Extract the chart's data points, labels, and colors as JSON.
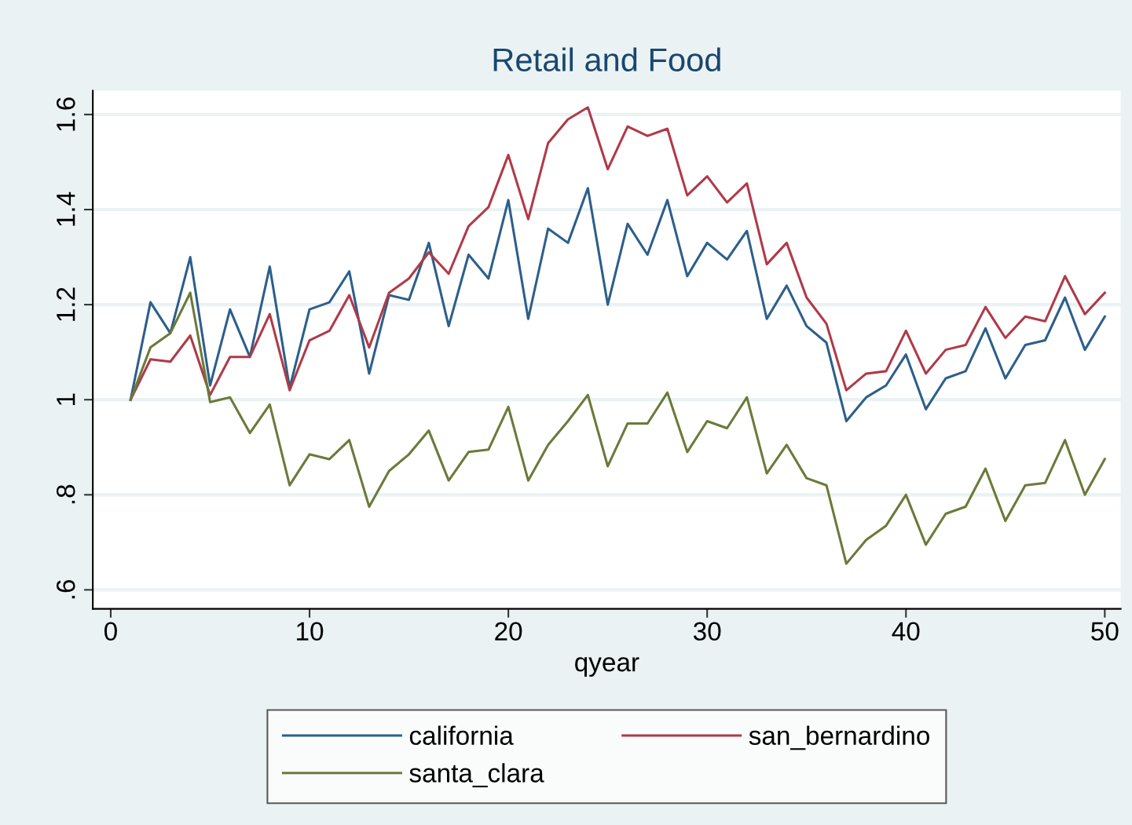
{
  "chart_data": {
    "type": "line",
    "title": "Retail and Food",
    "xlabel": "qyear",
    "x": [
      1,
      2,
      3,
      4,
      5,
      6,
      7,
      8,
      9,
      10,
      11,
      12,
      13,
      14,
      15,
      16,
      17,
      18,
      19,
      20,
      21,
      22,
      23,
      24,
      25,
      26,
      27,
      28,
      29,
      30,
      31,
      32,
      33,
      34,
      35,
      36,
      37,
      38,
      39,
      40,
      41,
      42,
      43,
      44,
      45,
      46,
      47,
      48,
      49,
      50
    ],
    "series": [
      {
        "name": "california",
        "color": "#2d5f8a",
        "values": [
          1.0,
          1.205,
          1.14,
          1.3,
          1.03,
          1.19,
          1.09,
          1.28,
          1.025,
          1.19,
          1.205,
          1.27,
          1.055,
          1.22,
          1.21,
          1.33,
          1.155,
          1.305,
          1.255,
          1.42,
          1.17,
          1.36,
          1.33,
          1.445,
          1.2,
          1.37,
          1.305,
          1.42,
          1.26,
          1.33,
          1.295,
          1.355,
          1.17,
          1.24,
          1.155,
          1.12,
          0.955,
          1.005,
          1.03,
          1.095,
          0.98,
          1.045,
          1.06,
          1.15,
          1.045,
          1.115,
          1.125,
          1.215,
          1.105,
          1.175
        ]
      },
      {
        "name": "san_bernardino",
        "color": "#b03a48",
        "values": [
          1.0,
          1.085,
          1.08,
          1.135,
          1.01,
          1.09,
          1.09,
          1.18,
          1.02,
          1.125,
          1.145,
          1.22,
          1.11,
          1.225,
          1.255,
          1.31,
          1.265,
          1.365,
          1.405,
          1.515,
          1.38,
          1.54,
          1.59,
          1.615,
          1.485,
          1.575,
          1.555,
          1.57,
          1.43,
          1.47,
          1.415,
          1.455,
          1.285,
          1.33,
          1.215,
          1.16,
          1.02,
          1.055,
          1.06,
          1.145,
          1.055,
          1.105,
          1.115,
          1.195,
          1.13,
          1.175,
          1.165,
          1.26,
          1.18,
          1.225
        ]
      },
      {
        "name": "santa_clara",
        "color": "#6b7a3a",
        "values": [
          1.0,
          1.11,
          1.14,
          1.225,
          0.995,
          1.005,
          0.93,
          0.99,
          0.82,
          0.885,
          0.875,
          0.915,
          0.775,
          0.85,
          0.885,
          0.935,
          0.83,
          0.89,
          0.895,
          0.985,
          0.83,
          0.905,
          0.955,
          1.01,
          0.86,
          0.95,
          0.95,
          1.015,
          0.89,
          0.955,
          0.94,
          1.005,
          0.845,
          0.905,
          0.835,
          0.82,
          0.655,
          0.705,
          0.735,
          0.8,
          0.695,
          0.76,
          0.775,
          0.855,
          0.745,
          0.82,
          0.825,
          0.915,
          0.8,
          0.875
        ]
      }
    ],
    "xlim": [
      -0.9,
      50.8
    ],
    "xticks": [
      0,
      10,
      20,
      30,
      40,
      50
    ],
    "ylim": [
      0.56,
      1.65
    ],
    "yticks": [
      {
        "value": 0.6,
        "label": ".6"
      },
      {
        "value": 0.8,
        "label": ".8"
      },
      {
        "value": 1,
        "label": "1"
      },
      {
        "value": 1.2,
        "label": "1.2"
      },
      {
        "value": 1.4,
        "label": "1.4"
      },
      {
        "value": 1.6,
        "label": "1.6"
      }
    ],
    "grid": "y",
    "legend": "bottom",
    "marker": "none",
    "line_style": "solid"
  }
}
